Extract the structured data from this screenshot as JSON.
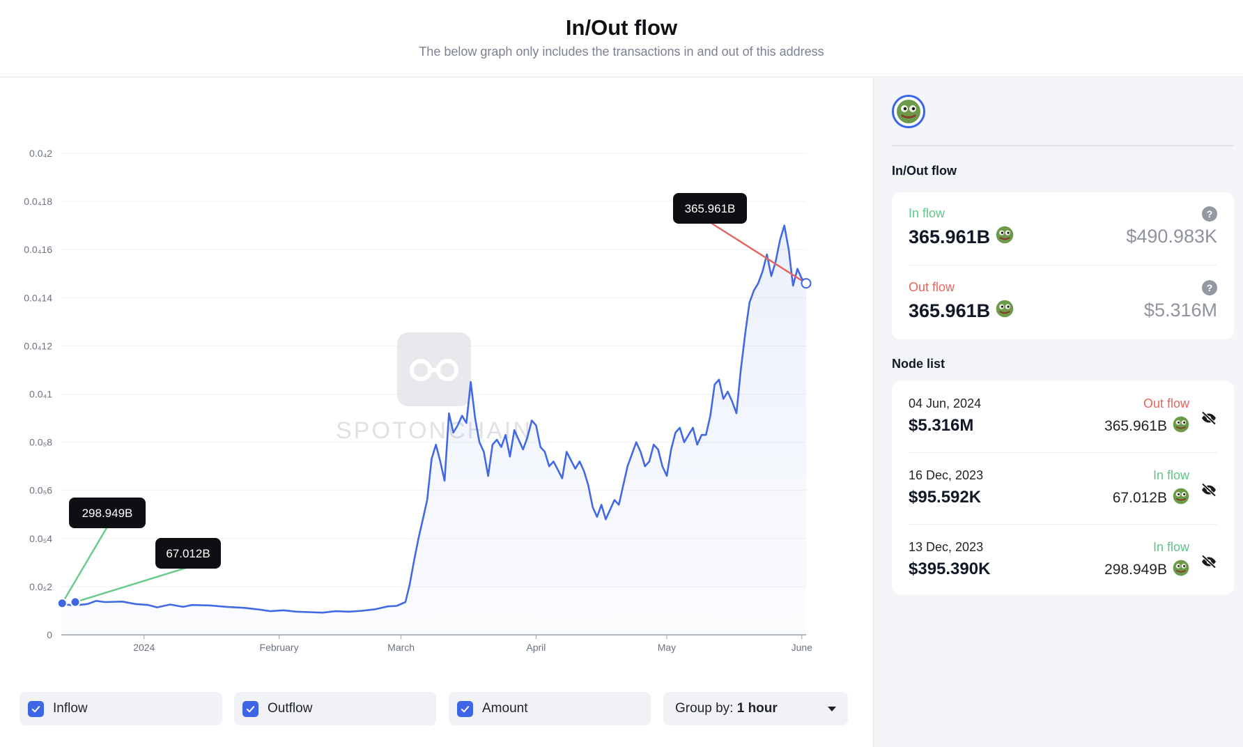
{
  "header": {
    "title": "In/Out flow",
    "subtitle": "The below graph only includes the transactions in and out of this address"
  },
  "chart_data": {
    "type": "area",
    "y_ticks": [
      "0",
      "0.0₅2",
      "0.0₅4",
      "0.0₅6",
      "0.0₅8",
      "0.0₄1",
      "0.0₄12",
      "0.0₄14",
      "0.0₄16",
      "0.0₄18",
      "0.0₄2"
    ],
    "y_tick_values": [
      0,
      0.02,
      0.04,
      0.06,
      0.08,
      0.1,
      0.12,
      0.14,
      0.16,
      0.18,
      0.2
    ],
    "ylim": [
      0,
      0.2
    ],
    "x_ticks": [
      "2024",
      "February",
      "March",
      "April",
      "May",
      "June"
    ],
    "x_tick_values": [
      19,
      50,
      78,
      109,
      139,
      170
    ],
    "xlim": [
      0,
      171
    ],
    "grid": true,
    "series": [
      {
        "color": "#4169e1",
        "points": [
          [
            0,
            0.0128
          ],
          [
            3,
            0.0122
          ],
          [
            6,
            0.0128
          ],
          [
            8,
            0.0141
          ],
          [
            10,
            0.0136
          ],
          [
            14,
            0.0138
          ],
          [
            17,
            0.0128
          ],
          [
            20,
            0.0124
          ],
          [
            22,
            0.0114
          ],
          [
            25,
            0.0126
          ],
          [
            28,
            0.0116
          ],
          [
            30,
            0.0124
          ],
          [
            34,
            0.0122
          ],
          [
            38,
            0.0116
          ],
          [
            42,
            0.0112
          ],
          [
            45,
            0.0106
          ],
          [
            48,
            0.0098
          ],
          [
            51,
            0.0102
          ],
          [
            54,
            0.0096
          ],
          [
            57,
            0.0094
          ],
          [
            60,
            0.0092
          ],
          [
            63,
            0.0098
          ],
          [
            66,
            0.0096
          ],
          [
            69,
            0.01
          ],
          [
            72,
            0.0106
          ],
          [
            74,
            0.0114
          ],
          [
            75,
            0.0118
          ],
          [
            77,
            0.012
          ],
          [
            79,
            0.0136
          ],
          [
            80,
            0.021
          ],
          [
            81,
            0.031
          ],
          [
            82,
            0.04
          ],
          [
            83,
            0.048
          ],
          [
            84,
            0.056
          ],
          [
            85,
            0.073
          ],
          [
            86,
            0.079
          ],
          [
            87,
            0.072
          ],
          [
            88,
            0.064
          ],
          [
            89,
            0.092
          ],
          [
            90,
            0.084
          ],
          [
            91,
            0.087
          ],
          [
            92,
            0.091
          ],
          [
            93,
            0.088
          ],
          [
            94,
            0.105
          ],
          [
            95,
            0.09
          ],
          [
            96,
            0.08
          ],
          [
            97,
            0.076
          ],
          [
            98,
            0.066
          ],
          [
            99,
            0.079
          ],
          [
            100,
            0.081
          ],
          [
            101,
            0.078
          ],
          [
            102,
            0.083
          ],
          [
            103,
            0.074
          ],
          [
            104,
            0.085
          ],
          [
            106,
            0.077
          ],
          [
            107,
            0.082
          ],
          [
            108,
            0.089
          ],
          [
            109,
            0.087
          ],
          [
            110,
            0.078
          ],
          [
            111,
            0.076
          ],
          [
            112,
            0.07
          ],
          [
            113,
            0.072
          ],
          [
            115,
            0.065
          ],
          [
            116,
            0.076
          ],
          [
            118,
            0.069
          ],
          [
            119,
            0.072
          ],
          [
            120,
            0.068
          ],
          [
            121,
            0.062
          ],
          [
            122,
            0.053
          ],
          [
            123,
            0.049
          ],
          [
            124,
            0.054
          ],
          [
            125,
            0.048
          ],
          [
            126,
            0.052
          ],
          [
            127,
            0.056
          ],
          [
            128,
            0.054
          ],
          [
            129,
            0.062
          ],
          [
            130,
            0.07
          ],
          [
            131,
            0.075
          ],
          [
            132,
            0.08
          ],
          [
            133,
            0.076
          ],
          [
            134,
            0.07
          ],
          [
            135,
            0.072
          ],
          [
            136,
            0.079
          ],
          [
            137,
            0.077
          ],
          [
            138,
            0.07
          ],
          [
            139,
            0.066
          ],
          [
            140,
            0.077
          ],
          [
            141,
            0.084
          ],
          [
            142,
            0.086
          ],
          [
            143,
            0.08
          ],
          [
            144,
            0.083
          ],
          [
            145,
            0.086
          ],
          [
            146,
            0.079
          ],
          [
            147,
            0.083
          ],
          [
            148,
            0.083
          ],
          [
            149,
            0.091
          ],
          [
            150,
            0.104
          ],
          [
            151,
            0.106
          ],
          [
            152,
            0.098
          ],
          [
            153,
            0.101
          ],
          [
            154,
            0.097
          ],
          [
            155,
            0.092
          ],
          [
            156,
            0.11
          ],
          [
            157,
            0.125
          ],
          [
            158,
            0.138
          ],
          [
            159,
            0.143
          ],
          [
            160,
            0.146
          ],
          [
            161,
            0.151
          ],
          [
            162,
            0.158
          ],
          [
            163,
            0.149
          ],
          [
            164,
            0.155
          ],
          [
            165,
            0.164
          ],
          [
            166,
            0.17
          ],
          [
            167,
            0.16
          ],
          [
            168,
            0.145
          ],
          [
            169,
            0.152
          ],
          [
            170,
            0.148
          ],
          [
            171,
            0.146
          ]
        ]
      }
    ],
    "annotations": [
      {
        "label": "298.949B",
        "x": 0.2,
        "y": 0.0131,
        "color": "#6acb8c"
      },
      {
        "label": "67.012B",
        "x": 3.2,
        "y": 0.0136,
        "color": "#6acb8c"
      },
      {
        "label": "365.961B",
        "x": 171,
        "y": 0.146,
        "color": "#e2665f"
      }
    ],
    "watermark": "SPOTONCHAIN"
  },
  "controls": {
    "inflow_label": "Inflow",
    "outflow_label": "Outflow",
    "amount_label": "Amount",
    "group_prefix": "Group by:",
    "group_value": "1 hour"
  },
  "side": {
    "flow_title": "In/Out flow",
    "inflow": {
      "label": "In flow",
      "amount": "365.961B",
      "usd": "$490.983K"
    },
    "outflow": {
      "label": "Out flow",
      "amount": "365.961B",
      "usd": "$5.316M"
    },
    "help_glyph": "?",
    "node_title": "Node list",
    "nodes": [
      {
        "date": "04 Jun, 2024",
        "value": "$5.316M",
        "type": "Out flow",
        "amount": "365.961B"
      },
      {
        "date": "16 Dec, 2023",
        "value": "$95.592K",
        "type": "In flow",
        "amount": "67.012B"
      },
      {
        "date": "13 Dec, 2023",
        "value": "$395.390K",
        "type": "In flow",
        "amount": "298.949B"
      }
    ]
  },
  "colors": {
    "accent": "#3d66e6",
    "inflow": "#62c48a",
    "outflow": "#e2665f",
    "line": "#4169e1"
  }
}
